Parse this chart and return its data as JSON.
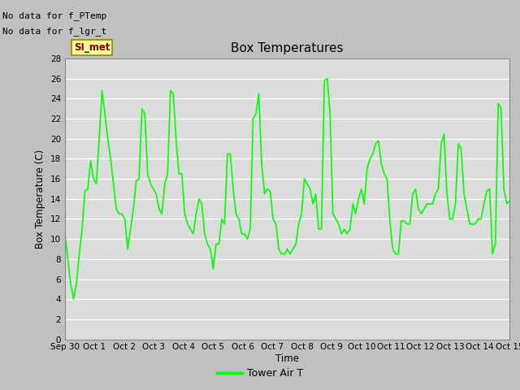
{
  "title": "Box Temperatures",
  "ylabel": "Box Temperature (C)",
  "xlabel": "Time",
  "ylim": [
    0,
    28
  ],
  "yticks": [
    0,
    2,
    4,
    6,
    8,
    10,
    12,
    14,
    16,
    18,
    20,
    22,
    24,
    26,
    28
  ],
  "line_color": "#00FF00",
  "line_width": 1.2,
  "bg_color": "#DCDCDC",
  "fig_bg_color": "#C0C0C0",
  "legend_label": "Tower Air T",
  "no_data_texts": [
    "No data for f_PTemp",
    "No data for f_lgr_t"
  ],
  "si_met_label": "SI_met",
  "xtick_labels": [
    "Sep 30",
    "Oct 1",
    "Oct 2",
    "Oct 3",
    "Oct 4",
    "Oct 5",
    "Oct 6",
    "Oct 7",
    "Oct 8",
    "Oct 9",
    "Oct 10",
    "Oct 11",
    "Oct 12",
    "Oct 13",
    "Oct 14",
    "Oct 15"
  ],
  "x_days": [
    0,
    1,
    2,
    3,
    4,
    5,
    6,
    7,
    8,
    9,
    10,
    11,
    12,
    13,
    14,
    15
  ],
  "temperatures": [
    10.5,
    8.0,
    5.5,
    4.0,
    5.5,
    8.5,
    11.0,
    14.8,
    15.0,
    17.8,
    16.0,
    15.5,
    20.0,
    24.8,
    22.5,
    20.0,
    18.0,
    15.5,
    13.0,
    12.5,
    12.5,
    12.0,
    9.0,
    11.0,
    13.0,
    15.8,
    16.0,
    23.0,
    22.5,
    16.5,
    15.5,
    15.0,
    14.5,
    13.0,
    12.5,
    15.5,
    16.5,
    24.8,
    24.5,
    19.8,
    16.5,
    16.5,
    12.5,
    11.5,
    11.0,
    10.5,
    12.5,
    14.0,
    13.5,
    10.5,
    9.5,
    9.0,
    7.0,
    9.5,
    9.5,
    12.0,
    11.5,
    18.5,
    18.5,
    15.0,
    12.5,
    12.0,
    10.5,
    10.5,
    10.0,
    11.0,
    22.0,
    22.5,
    24.5,
    17.5,
    14.5,
    15.0,
    14.8,
    12.0,
    11.5,
    9.0,
    8.5,
    8.5,
    9.0,
    8.5,
    9.0,
    9.5,
    11.5,
    12.5,
    16.0,
    15.5,
    15.0,
    13.5,
    14.5,
    11.0,
    11.0,
    25.8,
    26.0,
    22.5,
    12.5,
    12.0,
    11.5,
    10.5,
    11.0,
    10.5,
    11.0,
    13.5,
    12.5,
    14.0,
    15.0,
    13.5,
    17.0,
    18.0,
    18.5,
    19.5,
    19.8,
    17.5,
    16.5,
    16.0,
    11.8,
    9.0,
    8.5,
    8.5,
    11.8,
    11.8,
    11.5,
    11.5,
    14.5,
    15.0,
    13.0,
    12.5,
    13.0,
    13.5,
    13.5,
    13.5,
    14.5,
    15.0,
    19.5,
    20.5,
    14.5,
    12.0,
    12.0,
    13.5,
    19.5,
    19.0,
    14.5,
    13.0,
    11.5,
    11.5,
    11.5,
    12.0,
    12.0,
    13.5,
    14.8,
    15.0,
    8.5,
    9.5,
    23.5,
    23.0,
    15.0,
    13.5,
    13.8
  ]
}
